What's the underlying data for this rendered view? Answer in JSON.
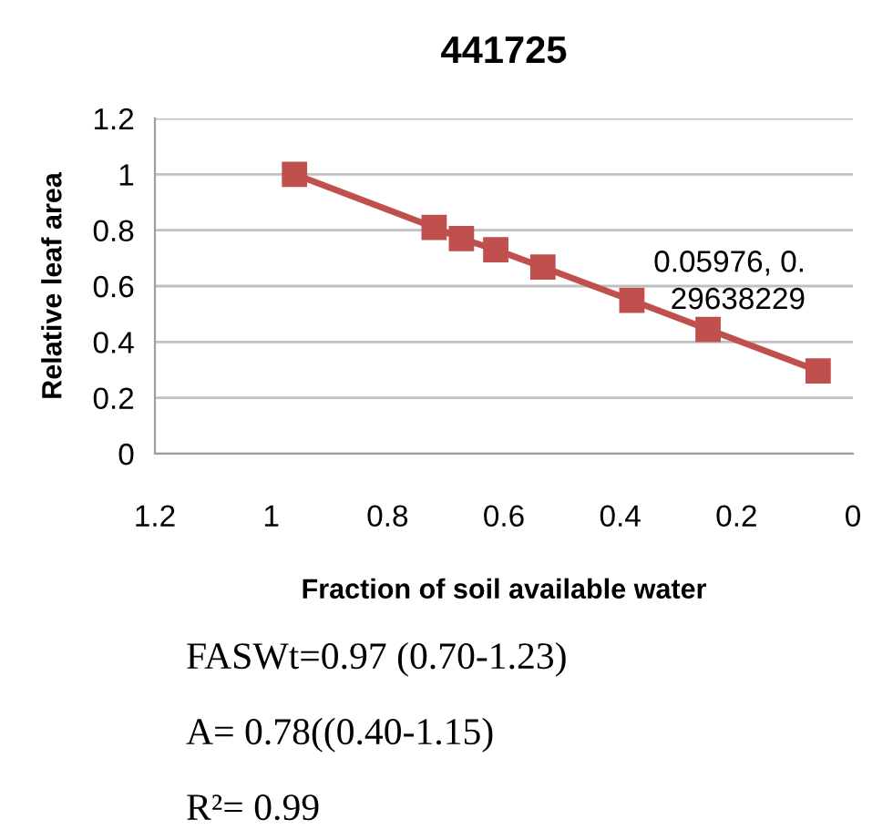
{
  "chart_data": {
    "type": "line",
    "title": "441725",
    "xlabel": "Fraction of soil available water",
    "ylabel": "Relative leaf area",
    "x": [
      0.96,
      0.72,
      0.673,
      0.614,
      0.533,
      0.38,
      0.249,
      0.05976
    ],
    "series": [
      {
        "color": "#c0504d",
        "values": [
          1.0,
          0.81,
          0.77,
          0.73,
          0.668,
          0.549,
          0.445,
          0.29638229
        ]
      }
    ],
    "marker": "square",
    "line_style": "solid",
    "grid": "y",
    "legend": false,
    "xlim": [
      1.2,
      0
    ],
    "xticks": [
      1.2,
      1,
      0.8,
      0.6,
      0.4,
      0.2,
      0
    ],
    "ylim": [
      0,
      1.2
    ],
    "yticks": [
      0,
      0.2,
      0.4,
      0.6,
      0.8,
      1,
      1.2
    ],
    "annotations": [
      {
        "text": "0.05976, 0.\n29638229",
        "x": 0.05976,
        "y": 0.29638229
      },
      "FASWt=0.97 (0.70-1.23)",
      "A= 0.78((0.40-1.15)",
      "R²= 0.99"
    ]
  }
}
